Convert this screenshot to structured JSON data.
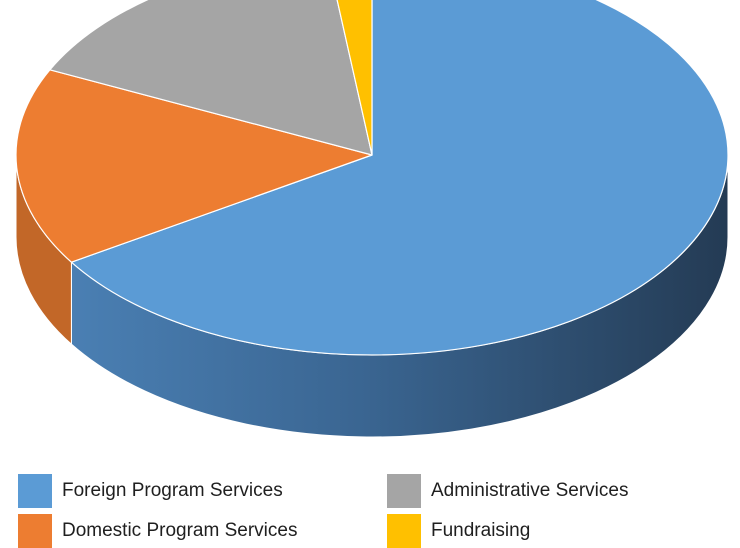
{
  "chart_data": {
    "type": "pie",
    "variant": "3d",
    "start_angle": "12 o'clock, clockwise",
    "categories": [
      "Foreign Program Services",
      "Domestic Program Services",
      "Administrative Services",
      "Fundraising"
    ],
    "values": [
      66,
      16,
      16,
      2
    ],
    "colors": [
      "#5b9bd5",
      "#ed7d31",
      "#a5a5a5",
      "#ffc000"
    ],
    "legend_position": "bottom",
    "title": ""
  },
  "legend": {
    "items": [
      {
        "label": "Foreign Program Services",
        "color": "#5b9bd5"
      },
      {
        "label": "Administrative Services",
        "color": "#a5a5a5"
      },
      {
        "label": "Domestic Program Services",
        "color": "#ed7d31"
      },
      {
        "label": "Fundraising",
        "color": "#ffc000"
      }
    ]
  }
}
